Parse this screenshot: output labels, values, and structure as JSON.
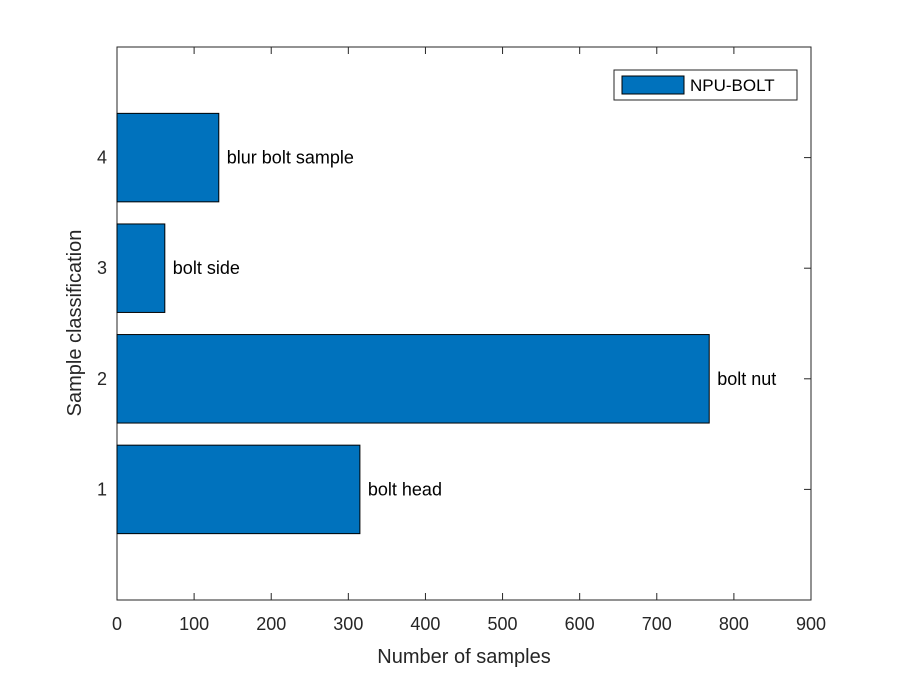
{
  "chart_data": {
    "type": "bar",
    "orientation": "horizontal",
    "categories": [
      "1",
      "2",
      "3",
      "4"
    ],
    "series": [
      {
        "name": "NPU-BOLT",
        "values": [
          315,
          768,
          62,
          132
        ],
        "color": "#0072BD"
      }
    ],
    "bar_labels": [
      "bolt head",
      "bolt nut",
      "bolt side",
      "blur bolt sample"
    ],
    "xlabel": "Number of samples",
    "ylabel": "Sample classification",
    "xlim": [
      0,
      900
    ],
    "ylim": [
      0,
      5
    ],
    "xticks": [
      0,
      100,
      200,
      300,
      400,
      500,
      600,
      700,
      800,
      900
    ],
    "yticks": [
      1,
      2,
      3,
      4
    ],
    "grid": false,
    "legend_position": "top-right",
    "colors": {
      "bar_fill": "#0072BD",
      "bar_edge": "#000000",
      "axis": "#262626"
    }
  }
}
